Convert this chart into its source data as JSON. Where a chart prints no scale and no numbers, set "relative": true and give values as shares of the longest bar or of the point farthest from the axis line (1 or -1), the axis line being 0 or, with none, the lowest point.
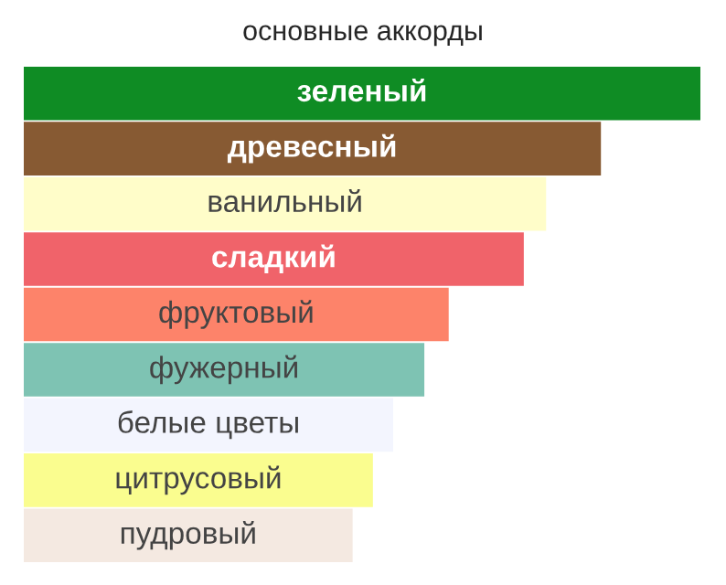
{
  "chart_data": {
    "type": "bar",
    "orientation": "horizontal",
    "relative": true,
    "title": "основные аккорды",
    "categories": [
      "зеленый",
      "древесный",
      "ванильный",
      "сладкий",
      "фруктовый",
      "фужерный",
      "белые цветы",
      "цитрусовый",
      "пудровый"
    ],
    "values": [
      1,
      0.853,
      0.772,
      0.739,
      0.628,
      0.592,
      0.546,
      0.516,
      0.486
    ],
    "colors": [
      "#0f8c24",
      "#875a33",
      "#fffdc9",
      "#f0636a",
      "#fd836a",
      "#7ec3b3",
      "#f3f5fe",
      "#fafd8f",
      "#f4e9e1"
    ],
    "tick_labels": false
  }
}
